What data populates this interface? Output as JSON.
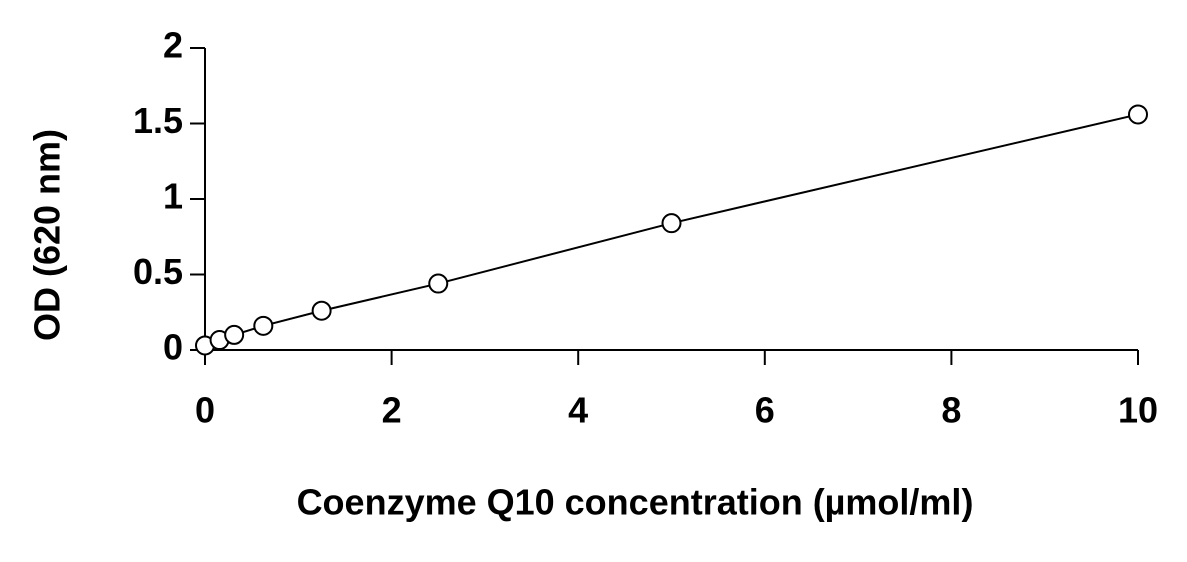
{
  "chart_data": {
    "type": "scatter",
    "x_label": "Coenzyme Q10 concentration (µmol/ml)",
    "y_label": "OD (620 nm)",
    "x": [
      0,
      0.156,
      0.3125,
      0.625,
      1.25,
      2.5,
      5,
      10
    ],
    "series": [
      {
        "color": "#000000",
        "values": [
          0.03,
          0.066,
          0.1,
          0.16,
          0.26,
          0.44,
          0.84,
          1.56
        ]
      }
    ],
    "connect": true,
    "xlim": [
      0,
      10
    ],
    "xticks": [
      0,
      2,
      4,
      6,
      8,
      10
    ],
    "ylim": [
      0,
      2
    ],
    "yticks": [
      0,
      0.5,
      1,
      1.5,
      2
    ],
    "grid": false
  }
}
